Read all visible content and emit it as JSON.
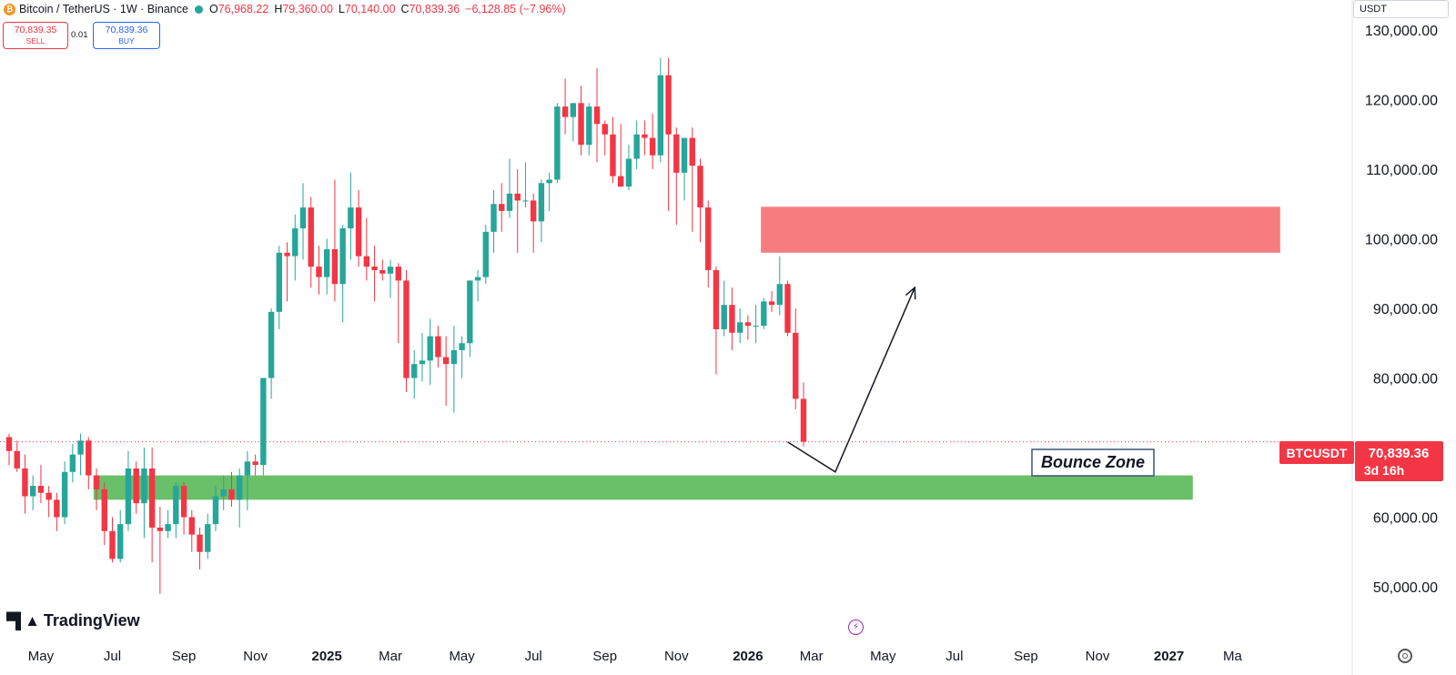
{
  "header": {
    "symbol": "Bitcoin / TetherUS · 1W · Binance",
    "open_label": "O",
    "open": "76,968.22",
    "high_label": "H",
    "high": "79,360.00",
    "low_label": "L",
    "low": "70,140.00",
    "close_label": "C",
    "close": "70,839.36",
    "change": "−6,128.85 (−7.96%)"
  },
  "trade": {
    "sell_price": "70,839.35",
    "sell_label": "SELL",
    "spread": "0.01",
    "buy_price": "70,839.36",
    "buy_label": "BUY"
  },
  "currency": "USDT",
  "logo": "TradingView",
  "annotation": {
    "label": "Bounce Zone"
  },
  "price_tag": {
    "symbol": "BTCUSDT",
    "price": "70,839.36",
    "countdown": "3d 16h"
  },
  "colors": {
    "up": "#26a69a",
    "down": "#f23645",
    "support": "#6abf69",
    "resistance": "#f77c80"
  },
  "chart_data": {
    "type": "candlestick",
    "y_axis": {
      "min": 50000,
      "max": 130000,
      "ticks": [
        50000,
        60000,
        70000,
        80000,
        90000,
        100000,
        110000,
        120000,
        130000
      ],
      "tick_labels": [
        "50,000.00",
        "60,000.00",
        "70,000.00",
        "80,000.00",
        "90,000.00",
        "100,000.00",
        "110,000.00",
        "120,000.00",
        "130,000.00"
      ]
    },
    "x_axis": {
      "labels": [
        {
          "text": "May",
          "week": 4
        },
        {
          "text": "Jul",
          "week": 13
        },
        {
          "text": "Sep",
          "week": 22
        },
        {
          "text": "Nov",
          "week": 31
        },
        {
          "text": "2025",
          "week": 40
        },
        {
          "text": "Mar",
          "week": 48
        },
        {
          "text": "May",
          "week": 57
        },
        {
          "text": "Jul",
          "week": 66
        },
        {
          "text": "Sep",
          "week": 75
        },
        {
          "text": "Nov",
          "week": 84
        },
        {
          "text": "2026",
          "week": 93
        },
        {
          "text": "Mar",
          "week": 101
        },
        {
          "text": "May",
          "week": 110
        },
        {
          "text": "Jul",
          "week": 119
        },
        {
          "text": "Sep",
          "week": 128
        },
        {
          "text": "Nov",
          "week": 137
        },
        {
          "text": "2027",
          "week": 146
        },
        {
          "text": "Ma",
          "week": 154
        }
      ]
    },
    "candles": [
      [
        71500,
        72000,
        67500,
        69500
      ],
      [
        69500,
        71000,
        66500,
        67000
      ],
      [
        67000,
        69000,
        60500,
        63000
      ],
      [
        63000,
        66000,
        61000,
        64500
      ],
      [
        64500,
        67500,
        62000,
        63500
      ],
      [
        63500,
        64500,
        60000,
        62500
      ],
      [
        62500,
        63500,
        58000,
        60000
      ],
      [
        60000,
        68000,
        59000,
        66500
      ],
      [
        66500,
        70500,
        65000,
        69000
      ],
      [
        69000,
        72000,
        66000,
        71000
      ],
      [
        71000,
        71500,
        64000,
        66000
      ],
      [
        66000,
        67000,
        61000,
        64000
      ],
      [
        64000,
        65000,
        56000,
        58000
      ],
      [
        58000,
        60000,
        53500,
        54000
      ],
      [
        54000,
        61000,
        53500,
        59000
      ],
      [
        59000,
        69500,
        58000,
        67000
      ],
      [
        67000,
        68000,
        60500,
        62000
      ],
      [
        62000,
        70000,
        57000,
        67000
      ],
      [
        67000,
        70000,
        53500,
        58500
      ],
      [
        58500,
        61500,
        49000,
        58000
      ],
      [
        58000,
        61000,
        57000,
        59000
      ],
      [
        59000,
        65000,
        57000,
        64500
      ],
      [
        64500,
        65000,
        57500,
        60000
      ],
      [
        60000,
        61000,
        55000,
        57500
      ],
      [
        57500,
        58500,
        52500,
        55000
      ],
      [
        55000,
        60500,
        54000,
        59000
      ],
      [
        59000,
        64500,
        58000,
        63000
      ],
      [
        63000,
        66000,
        61000,
        64000
      ],
      [
        64000,
        66500,
        61500,
        62500
      ],
      [
        62500,
        67000,
        58500,
        66000
      ],
      [
        66000,
        69500,
        61000,
        68000
      ],
      [
        68000,
        69000,
        66000,
        67500
      ],
      [
        67500,
        80000,
        66000,
        80000
      ],
      [
        80000,
        90000,
        77000,
        89500
      ],
      [
        89500,
        99000,
        87000,
        98000
      ],
      [
        98000,
        99500,
        91000,
        97500
      ],
      [
        97500,
        103500,
        94000,
        101500
      ],
      [
        101500,
        108000,
        97000,
        104500
      ],
      [
        104500,
        106000,
        93000,
        96000
      ],
      [
        96000,
        99000,
        92000,
        94500
      ],
      [
        94500,
        100000,
        92000,
        98500
      ],
      [
        98500,
        108500,
        91000,
        93500
      ],
      [
        93500,
        102000,
        88000,
        101500
      ],
      [
        101500,
        109500,
        97000,
        104500
      ],
      [
        104500,
        107000,
        96000,
        97500
      ],
      [
        97500,
        103000,
        94000,
        96000
      ],
      [
        96000,
        99000,
        91000,
        95500
      ],
      [
        95500,
        97000,
        94000,
        95000
      ],
      [
        95000,
        97000,
        91500,
        96000
      ],
      [
        96000,
        96500,
        85000,
        94000
      ],
      [
        94000,
        95500,
        78000,
        80000
      ],
      [
        80000,
        84000,
        77000,
        82000
      ],
      [
        82000,
        86500,
        79500,
        82500
      ],
      [
        82500,
        88500,
        79000,
        86000
      ],
      [
        86000,
        87500,
        81500,
        83000
      ],
      [
        83000,
        86000,
        76000,
        82000
      ],
      [
        82000,
        87500,
        75000,
        84000
      ],
      [
        84000,
        86000,
        80000,
        85000
      ],
      [
        85000,
        94000,
        83000,
        94000
      ],
      [
        94000,
        95500,
        91000,
        94500
      ],
      [
        94500,
        102000,
        93500,
        101000
      ],
      [
        101000,
        107000,
        98000,
        105000
      ],
      [
        105000,
        108000,
        101000,
        104000
      ],
      [
        104000,
        111500,
        103000,
        106500
      ],
      [
        106500,
        110000,
        98000,
        105500
      ],
      [
        105500,
        111000,
        104500,
        105500
      ],
      [
        105500,
        106500,
        98000,
        102500
      ],
      [
        102500,
        108500,
        99500,
        108000
      ],
      [
        108000,
        109500,
        104000,
        108500
      ],
      [
        108500,
        119500,
        108000,
        119000
      ],
      [
        119000,
        123000,
        115000,
        117500
      ],
      [
        117500,
        119500,
        114000,
        119500
      ],
      [
        119500,
        122000,
        112000,
        113500
      ],
      [
        113500,
        119500,
        112000,
        119000
      ],
      [
        119000,
        124500,
        111000,
        116500
      ],
      [
        116500,
        117000,
        112000,
        115000
      ],
      [
        115000,
        117500,
        108000,
        109000
      ],
      [
        109000,
        116500,
        107500,
        107500
      ],
      [
        107500,
        113500,
        107000,
        111500
      ],
      [
        111500,
        117000,
        110000,
        115000
      ],
      [
        115000,
        117000,
        112000,
        114500
      ],
      [
        114500,
        118000,
        110000,
        112000
      ],
      [
        112000,
        126000,
        111000,
        123500
      ],
      [
        123500,
        126000,
        104000,
        115000
      ],
      [
        115000,
        116000,
        102000,
        109500
      ],
      [
        109500,
        114500,
        105500,
        114500
      ],
      [
        114500,
        116000,
        101000,
        110500
      ],
      [
        110500,
        111500,
        99500,
        104500
      ],
      [
        104500,
        105500,
        93000,
        95500
      ],
      [
        95500,
        96000,
        80500,
        87000
      ],
      [
        87000,
        94000,
        86000,
        90500
      ],
      [
        90500,
        93000,
        84000,
        86500
      ],
      [
        86500,
        90000,
        85000,
        88000
      ],
      [
        88000,
        89000,
        85500,
        87500
      ],
      [
        87500,
        90500,
        85000,
        87500
      ],
      [
        87500,
        91500,
        87000,
        91000
      ],
      [
        91000,
        92500,
        89500,
        90500
      ],
      [
        90500,
        97500,
        89000,
        93500
      ],
      [
        93500,
        94000,
        86000,
        86500
      ],
      [
        86500,
        90000,
        75500,
        77000
      ],
      [
        77000,
        79360,
        70140,
        70839
      ]
    ],
    "zones": [
      {
        "kind": "support",
        "from_week": 11,
        "to_week": 149,
        "low": 62500,
        "high": 66000
      },
      {
        "kind": "resistance",
        "from_week": 95,
        "to_week": 160,
        "low": 98000,
        "high": 104600
      }
    ],
    "projection": [
      [
        98,
        70800
      ],
      [
        104,
        66500
      ],
      [
        114,
        93000
      ]
    ],
    "last_price": 70839.36
  }
}
